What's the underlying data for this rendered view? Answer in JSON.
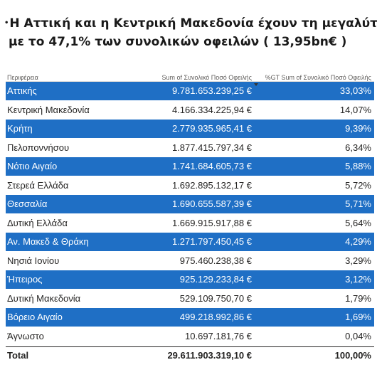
{
  "headline": {
    "bullet": "•",
    "line1": "Η Αττική και η Κεντρική Μακεδονία  έχουν τη μεγαλύτερη συγκέντρωση",
    "line2": "με το 47,1% των συνολικών οφειλών ( 13,95bn€ )"
  },
  "table": {
    "columns": [
      "Περιφέρεια",
      "Sum of Συνολικό Ποσό Οφειλής",
      "%GT Sum of Συνολικό Ποσό Οφειλής"
    ],
    "rows": [
      {
        "region": "Αττικής",
        "amount": "9.781.653.239,25 €",
        "pct": "33,03%"
      },
      {
        "region": "Κεντρική Μακεδονία",
        "amount": "4.166.334.225,94 €",
        "pct": "14,07%"
      },
      {
        "region": "Κρήτη",
        "amount": "2.779.935.965,41 €",
        "pct": "9,39%"
      },
      {
        "region": "Πελοποννήσου",
        "amount": "1.877.415.797,34 €",
        "pct": "6,34%"
      },
      {
        "region": "Νότιο Αιγαίο",
        "amount": "1.741.684.605,73 €",
        "pct": "5,88%"
      },
      {
        "region": "Στερεά Ελλάδα",
        "amount": "1.692.895.132,17 €",
        "pct": "5,72%"
      },
      {
        "region": "Θεσσαλία",
        "amount": "1.690.655.587,39 €",
        "pct": "5,71%"
      },
      {
        "region": "Δυτική Ελλάδα",
        "amount": "1.669.915.917,88 €",
        "pct": "5,64%"
      },
      {
        "region": "Αν. Μακεδ & Θράκη",
        "amount": "1.271.797.450,45 €",
        "pct": "4,29%"
      },
      {
        "region": "Νησιά Ιονίου",
        "amount": "975.460.238,38 €",
        "pct": "3,29%"
      },
      {
        "region": "Ήπειρος",
        "amount": "925.129.233,84 €",
        "pct": "3,12%"
      },
      {
        "region": "Δυτική Μακεδονία",
        "amount": "529.109.750,70 €",
        "pct": "1,79%"
      },
      {
        "region": "Βόρειο Αιγαίο",
        "amount": "499.218.992,86 €",
        "pct": "1,69%"
      },
      {
        "region": "Άγνωστο",
        "amount": "10.697.181,76 €",
        "pct": "0,04%"
      }
    ],
    "total": {
      "label": "Total",
      "amount": "29.611.903.319,10 €",
      "pct": "100,00%"
    },
    "alt_row_color": "#1f6fc5"
  }
}
